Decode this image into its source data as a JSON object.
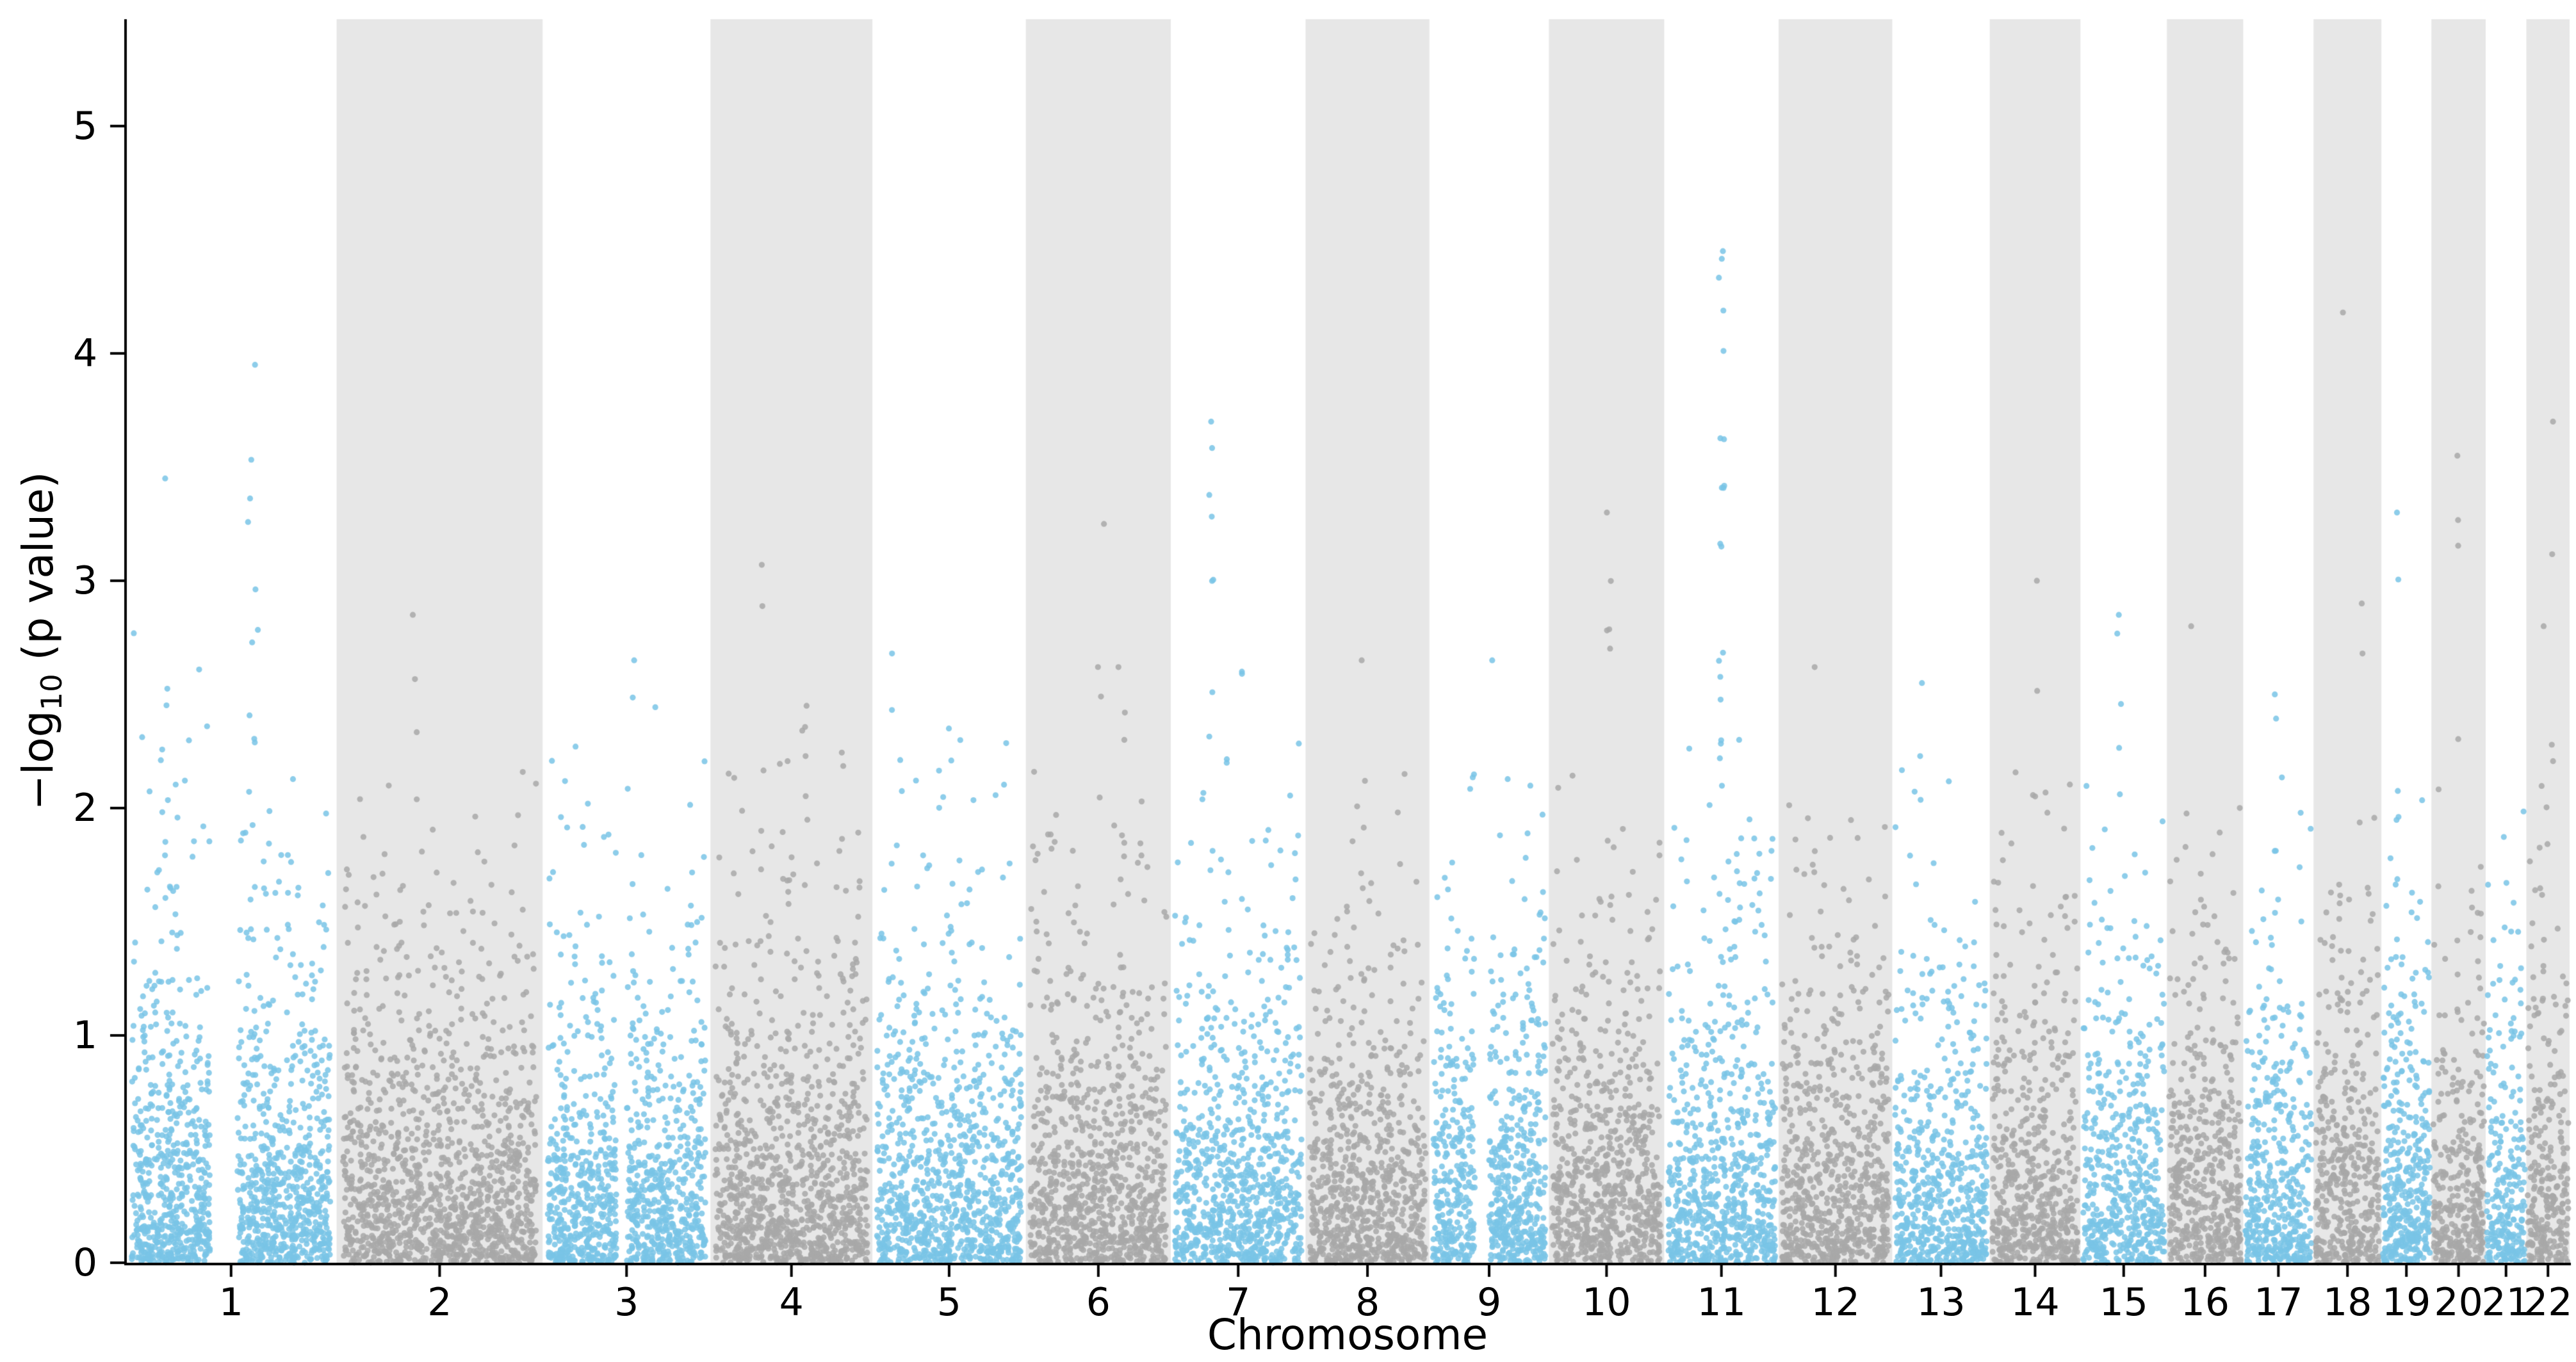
{
  "chart_data": {
    "type": "scatter",
    "variant": "manhattan-plot",
    "title": "",
    "xlabel": "Chromosome",
    "ylabel": {
      "prefix": "−log",
      "sub": "10",
      "suffix": " (p value)"
    },
    "ylim": [
      0,
      5.47
    ],
    "yticks": [
      0,
      1,
      2,
      3,
      4,
      5
    ],
    "grid": false,
    "legend": "none",
    "background": "#ffffff",
    "band_color": "#e7e7e7",
    "point_color_odd": "#79c4e6",
    "point_color_even": "#a8a8a8",
    "axis_color": "#000000",
    "chromosomes": [
      {
        "label": "1",
        "length": 249,
        "n": 1370,
        "bg_max": 2.85,
        "gap": [
          0.4,
          0.53
        ],
        "peaks": [
          {
            "f": 0.18,
            "top": 3.45,
            "n": 8
          },
          {
            "f": 0.6,
            "top": 3.95,
            "n": 12
          }
        ]
      },
      {
        "label": "2",
        "length": 243,
        "n": 1340,
        "bg_max": 2.35,
        "peaks": [
          {
            "f": 0.38,
            "top": 2.85,
            "n": 3
          }
        ]
      },
      {
        "label": "3",
        "length": 198,
        "n": 1090,
        "bg_max": 2.45,
        "gap": [
          0.44,
          0.5
        ],
        "peaks": [
          {
            "f": 0.55,
            "top": 2.65,
            "n": 2
          }
        ]
      },
      {
        "label": "4",
        "length": 191,
        "n": 1050,
        "bg_max": 2.3,
        "peaks": [
          {
            "f": 0.3,
            "top": 3.07,
            "n": 2
          },
          {
            "f": 0.58,
            "top": 2.45,
            "n": 6
          }
        ]
      },
      {
        "label": "5",
        "length": 181,
        "n": 1000,
        "bg_max": 2.3,
        "peaks": [
          {
            "f": 0.15,
            "top": 2.68,
            "n": 3
          },
          {
            "f": 0.5,
            "top": 2.35,
            "n": 4
          }
        ]
      },
      {
        "label": "6",
        "length": 171,
        "n": 940,
        "bg_max": 2.2,
        "peaks": [
          {
            "f": 0.52,
            "top": 3.25,
            "n": 4
          },
          {
            "f": 0.66,
            "top": 2.62,
            "n": 6
          }
        ]
      },
      {
        "label": "7",
        "length": 159,
        "n": 875,
        "bg_max": 2.3,
        "peaks": [
          {
            "f": 0.3,
            "top": 3.7,
            "n": 13
          },
          {
            "f": 0.55,
            "top": 2.6,
            "n": 4
          }
        ]
      },
      {
        "label": "8",
        "length": 146,
        "n": 800,
        "bg_max": 2.15,
        "peaks": [
          {
            "f": 0.45,
            "top": 2.65,
            "n": 2
          }
        ]
      },
      {
        "label": "9",
        "length": 141,
        "n": 775,
        "bg_max": 2.15,
        "gap": [
          0.38,
          0.5
        ],
        "peaks": [
          {
            "f": 0.55,
            "top": 2.65,
            "n": 2
          }
        ]
      },
      {
        "label": "10",
        "length": 136,
        "n": 750,
        "bg_max": 2.2,
        "peaks": [
          {
            "f": 0.52,
            "top": 3.3,
            "n": 7
          }
        ]
      },
      {
        "label": "11",
        "length": 135,
        "n": 740,
        "bg_max": 2.3,
        "peaks": [
          {
            "f": 0.5,
            "top": 4.45,
            "n": 22
          },
          {
            "f": 0.64,
            "top": 2.3,
            "n": 5
          }
        ]
      },
      {
        "label": "12",
        "length": 134,
        "n": 740,
        "bg_max": 2.15,
        "peaks": [
          {
            "f": 0.3,
            "top": 2.62,
            "n": 4
          }
        ]
      },
      {
        "label": "13",
        "length": 115,
        "n": 630,
        "bg_max": 2.2,
        "peaks": [
          {
            "f": 0.3,
            "top": 2.55,
            "n": 3
          }
        ]
      },
      {
        "label": "14",
        "length": 107,
        "n": 590,
        "bg_max": 2.2,
        "peaks": [
          {
            "f": 0.5,
            "top": 3.0,
            "n": 3
          }
        ]
      },
      {
        "label": "15",
        "length": 102,
        "n": 560,
        "bg_max": 2.3,
        "peaks": [
          {
            "f": 0.45,
            "top": 2.85,
            "n": 4
          }
        ]
      },
      {
        "label": "16",
        "length": 90,
        "n": 495,
        "bg_max": 2.45,
        "peaks": [
          {
            "f": 0.3,
            "top": 2.8,
            "n": 3
          }
        ]
      },
      {
        "label": "17",
        "length": 83,
        "n": 455,
        "bg_max": 2.2,
        "peaks": [
          {
            "f": 0.45,
            "top": 2.5,
            "n": 4
          }
        ]
      },
      {
        "label": "18",
        "length": 80,
        "n": 440,
        "bg_max": 2.1,
        "peaks": [
          {
            "f": 0.45,
            "top": 4.18,
            "n": 1
          },
          {
            "f": 0.7,
            "top": 2.9,
            "n": 2
          }
        ]
      },
      {
        "label": "19",
        "length": 59,
        "n": 420,
        "bg_max": 2.15,
        "peaks": [
          {
            "f": 0.32,
            "top": 3.3,
            "n": 4
          }
        ]
      },
      {
        "label": "20",
        "length": 64,
        "n": 350,
        "bg_max": 2.2,
        "peaks": [
          {
            "f": 0.5,
            "top": 3.55,
            "n": 4
          }
        ]
      },
      {
        "label": "21",
        "length": 48,
        "n": 265,
        "bg_max": 2.15,
        "peaks": []
      },
      {
        "label": "22",
        "length": 51,
        "n": 280,
        "bg_max": 2.2,
        "peaks": [
          {
            "f": 0.6,
            "top": 3.7,
            "n": 4
          },
          {
            "f": 0.4,
            "top": 2.8,
            "n": 4
          }
        ]
      }
    ]
  }
}
